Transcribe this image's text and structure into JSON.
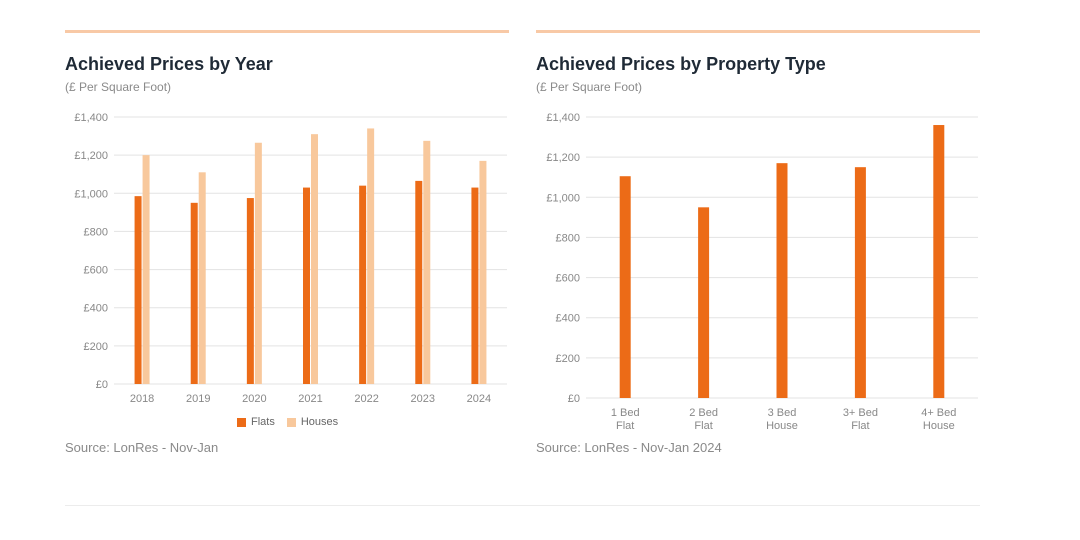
{
  "colors": {
    "flats": "#ec6b17",
    "houses": "#f8c89c",
    "grid": "#e3e3e3",
    "axis_text": "#888888",
    "rule": "#f8c9a6"
  },
  "left": {
    "title": "Achieved Prices by Year",
    "subtitle": "(£ Per Square Foot)",
    "source": "Source: LonRes - Nov-Jan",
    "legend": [
      "Flats",
      "Houses"
    ]
  },
  "right": {
    "title": "Achieved Prices by Property Type",
    "subtitle": "(£ Per Square Foot)",
    "source": "Source: LonRes - Nov-Jan 2024"
  },
  "chart_data": [
    {
      "type": "bar",
      "title": "Achieved Prices by Year",
      "subtitle": "(£ Per Square Foot)",
      "categories": [
        "2018",
        "2019",
        "2020",
        "2021",
        "2022",
        "2023",
        "2024"
      ],
      "series": [
        {
          "name": "Flats",
          "values": [
            985,
            950,
            975,
            1030,
            1040,
            1065,
            1030
          ]
        },
        {
          "name": "Houses",
          "values": [
            1200,
            1110,
            1265,
            1310,
            1340,
            1275,
            1170
          ]
        }
      ],
      "ylim": [
        0,
        1400
      ],
      "yticks": [
        0,
        200,
        400,
        600,
        800,
        1000,
        1200,
        1400
      ],
      "ytick_labels": [
        "£0",
        "£200",
        "£400",
        "£600",
        "£800",
        "£1,000",
        "£1,200",
        "£1,400"
      ],
      "grid": true,
      "legend": "bottom-center"
    },
    {
      "type": "bar",
      "title": "Achieved Prices by Property Type",
      "subtitle": "(£ Per Square Foot)",
      "categories": [
        [
          "1 Bed",
          "Flat"
        ],
        [
          "2 Bed",
          "Flat"
        ],
        [
          "3 Bed",
          "House"
        ],
        [
          "3+ Bed",
          "Flat"
        ],
        [
          "4+ Bed",
          "House"
        ]
      ],
      "values": [
        1105,
        950,
        1170,
        1150,
        1360
      ],
      "ylim": [
        0,
        1400
      ],
      "yticks": [
        0,
        200,
        400,
        600,
        800,
        1000,
        1200,
        1400
      ],
      "ytick_labels": [
        "£0",
        "£200",
        "£400",
        "£600",
        "£800",
        "£1,000",
        "£1,200",
        "£1,400"
      ],
      "grid": true
    }
  ]
}
